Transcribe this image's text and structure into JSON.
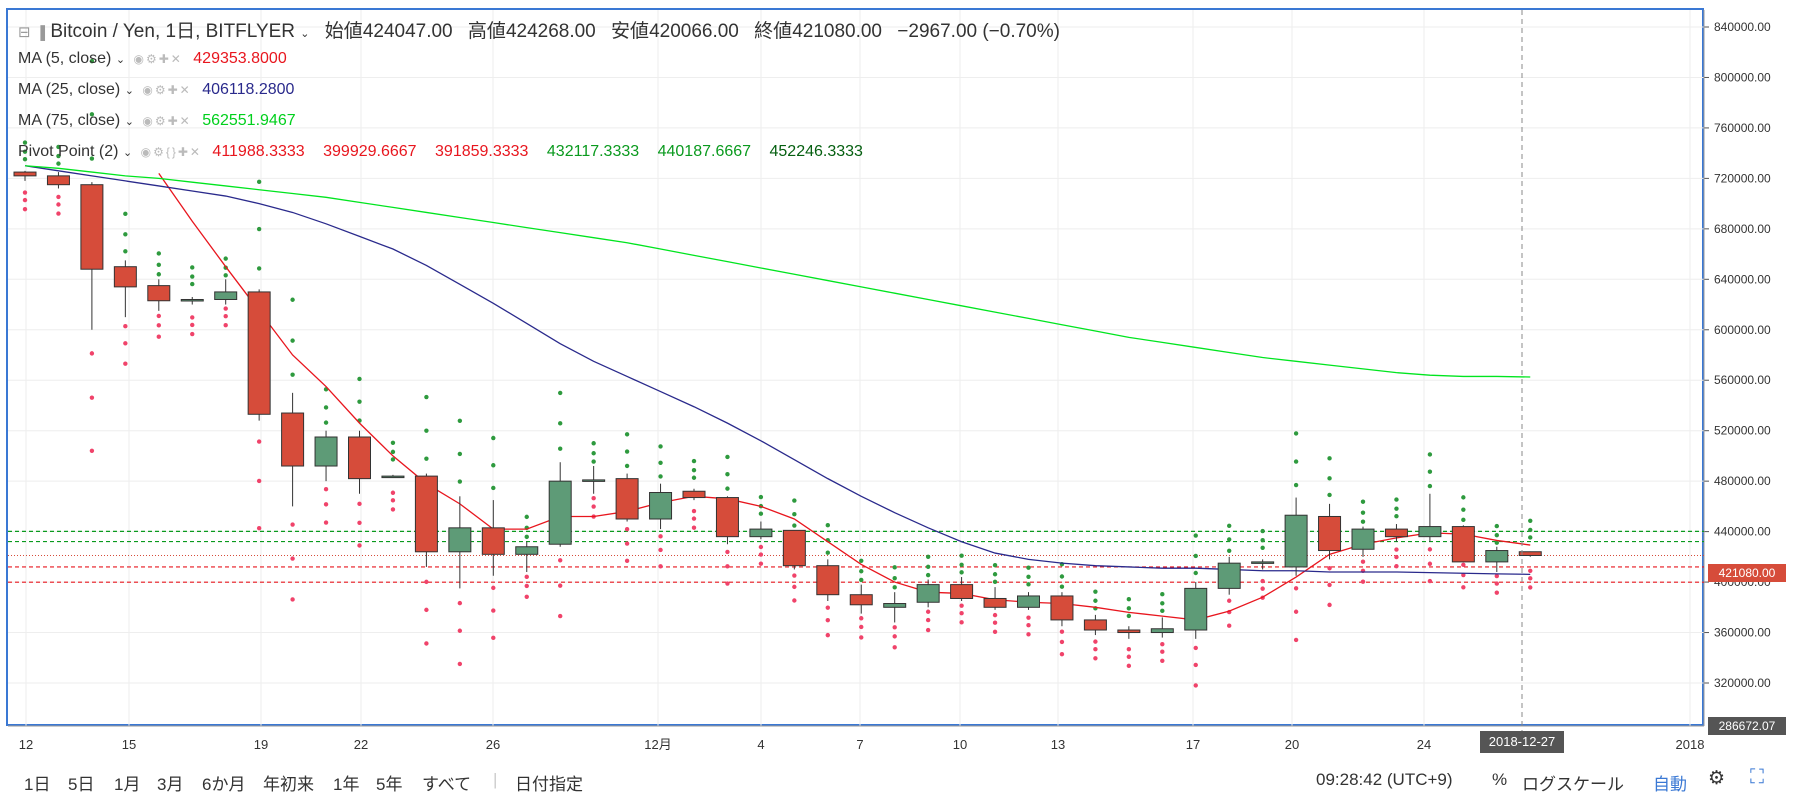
{
  "header": {
    "symbol_title": "Bitcoin / Yen, 1日, BITFLYER",
    "open_label": "始値",
    "open": "424047.00",
    "high_label": "高値",
    "high": "424268.00",
    "low_label": "安値",
    "low": "420066.00",
    "close_label": "終値",
    "close": "421080.00",
    "change": "−2967.00 (−0.70%)"
  },
  "legends": {
    "ma5": {
      "label": "MA (5, close)",
      "value": "429353.8000",
      "color": "#e8161e"
    },
    "ma25": {
      "label": "MA (25, close)",
      "value": "406118.2800",
      "color": "#2a2a8c"
    },
    "ma75": {
      "label": "MA (75, close)",
      "value": "562551.9467",
      "color": "#00e51f"
    },
    "pivot": {
      "label": "Pivot Point (2)",
      "values": [
        "411988.3333",
        "399929.6667",
        "391859.3333",
        "432117.3333",
        "440187.6667",
        "452246.3333"
      ],
      "colors": [
        "#e8161e",
        "#e8161e",
        "#e8161e",
        "#0a9a1e",
        "#0a9a1e",
        "#055f10"
      ]
    }
  },
  "price_axis": {
    "labels": [
      "840000.00",
      "800000.00",
      "760000.00",
      "720000.00",
      "680000.00",
      "640000.00",
      "600000.00",
      "560000.00",
      "520000.00",
      "480000.00",
      "440000.00",
      "400000.00",
      "360000.00",
      "320000.00"
    ],
    "last_price": "421080.00",
    "bottom_value": "286672.07"
  },
  "time_axis": {
    "labels": [
      "12",
      "15",
      "19",
      "22",
      "26",
      "12月",
      "4",
      "7",
      "10",
      "13",
      "17",
      "20",
      "24",
      "2018"
    ],
    "crosshair_date": "2018-12-27"
  },
  "bottombar": {
    "ranges": [
      "1日",
      "5日",
      "1月",
      "3月",
      "6か月",
      "年初来",
      "1年",
      "5年",
      "すべて"
    ],
    "date_jump": "日付指定",
    "clock": "09:28:42 (UTC+9)",
    "percent": "%",
    "log_scale": "ログスケール",
    "auto": "自動"
  },
  "colors": {
    "up": "#5e9b77",
    "down": "#d64c3a",
    "up_dot": "#2e9a3e",
    "down_dot": "#f0436a"
  },
  "chart_data": {
    "type": "candlestick",
    "symbol": "Bitcoin / Yen",
    "interval": "1日",
    "x": [
      "11-12",
      "11-13",
      "11-14",
      "11-15",
      "11-16",
      "11-17",
      "11-18",
      "11-19",
      "11-20",
      "11-21",
      "11-22",
      "11-23",
      "11-24",
      "11-25",
      "11-26",
      "11-27",
      "11-28",
      "11-29",
      "11-30",
      "12-01",
      "12-02",
      "12-03",
      "12-04",
      "12-05",
      "12-06",
      "12-07",
      "12-08",
      "12-09",
      "12-10",
      "12-11",
      "12-12",
      "12-13",
      "12-14",
      "12-15",
      "12-16",
      "12-17",
      "12-18",
      "12-19",
      "12-20",
      "12-21",
      "12-22",
      "12-23",
      "12-24",
      "12-25",
      "12-26",
      "12-27"
    ],
    "series": [
      {
        "name": "OHLC",
        "values": [
          [
            725000,
            726000,
            718000,
            722000
          ],
          [
            722000,
            725000,
            712000,
            715000
          ],
          [
            715000,
            717000,
            600000,
            648000
          ],
          [
            650000,
            655000,
            610000,
            634000
          ],
          [
            635000,
            640000,
            615000,
            623000
          ],
          [
            623000,
            626000,
            620000,
            624000
          ],
          [
            624000,
            640000,
            620000,
            630000
          ],
          [
            630000,
            632000,
            528000,
            533000
          ],
          [
            534000,
            550000,
            460000,
            492000
          ],
          [
            492000,
            520000,
            480000,
            515000
          ],
          [
            515000,
            520000,
            470000,
            482000
          ],
          [
            484000,
            485000,
            483000,
            484000
          ],
          [
            484000,
            486000,
            412000,
            424000
          ],
          [
            424000,
            468000,
            395000,
            443000
          ],
          [
            443000,
            465000,
            405000,
            422000
          ],
          [
            422000,
            432000,
            408000,
            428000
          ],
          [
            430000,
            495000,
            428000,
            480000
          ],
          [
            480000,
            492000,
            470000,
            481000
          ],
          [
            482000,
            486000,
            448000,
            450000
          ],
          [
            450000,
            478000,
            442000,
            471000
          ],
          [
            472000,
            474000,
            465000,
            467000
          ],
          [
            467000,
            468000,
            430000,
            436000
          ],
          [
            436000,
            448000,
            434000,
            442000
          ],
          [
            441000,
            440000,
            410000,
            413000
          ],
          [
            413000,
            418000,
            385000,
            390000
          ],
          [
            390000,
            398000,
            375000,
            382000
          ],
          [
            380000,
            392000,
            368000,
            383000
          ],
          [
            384000,
            402000,
            380000,
            398000
          ],
          [
            398000,
            404000,
            385000,
            387000
          ],
          [
            387000,
            396000,
            378000,
            380000
          ],
          [
            380000,
            392000,
            378000,
            389000
          ],
          [
            389000,
            392000,
            365000,
            370000
          ],
          [
            370000,
            374000,
            358000,
            362000
          ],
          [
            362000,
            365000,
            355000,
            360000
          ],
          [
            360000,
            372000,
            356000,
            363000
          ],
          [
            362000,
            400000,
            355000,
            395000
          ],
          [
            395000,
            420000,
            390000,
            415000
          ],
          [
            415000,
            418000,
            410000,
            416000
          ],
          [
            412000,
            467000,
            405000,
            453000
          ],
          [
            452000,
            462000,
            418000,
            425000
          ],
          [
            426000,
            444000,
            420000,
            442000
          ],
          [
            442000,
            446000,
            432000,
            436000
          ],
          [
            436000,
            470000,
            432000,
            444000
          ],
          [
            444000,
            445000,
            418000,
            416000
          ],
          [
            416000,
            428000,
            408000,
            425000
          ],
          [
            424047,
            424268,
            420066,
            421080
          ]
        ]
      },
      {
        "name": "MA (5, close)",
        "values": [
          null,
          null,
          null,
          null,
          724000,
          686000,
          650000,
          615000,
          580000,
          555000,
          526000,
          500000,
          478000,
          462000,
          442000,
          442000,
          452000,
          452000,
          456000,
          463000,
          468000,
          466000,
          460000,
          450000,
          432000,
          414000,
          400000,
          392000,
          391000,
          386000,
          384000,
          383000,
          380000,
          376000,
          373000,
          370000,
          377000,
          388000,
          404000,
          422000,
          430000,
          435000,
          439000,
          438000,
          433000,
          429354
        ]
      },
      {
        "name": "MA (25, close)",
        "values": [
          730000,
          726000,
          722000,
          718000,
          714000,
          710000,
          706000,
          700000,
          693000,
          684000,
          674000,
          664000,
          651000,
          636000,
          621000,
          605000,
          589000,
          575000,
          563000,
          551000,
          539000,
          526000,
          512000,
          497000,
          482000,
          468000,
          455000,
          443000,
          432000,
          423000,
          418000,
          415000,
          413000,
          412000,
          411000,
          411000,
          410000,
          409000,
          409000,
          408000,
          408000,
          408000,
          407500,
          407000,
          406500,
          406118
        ]
      },
      {
        "name": "MA (75, close)",
        "values": [
          730000,
          728000,
          725000,
          722000,
          720000,
          717000,
          714000,
          711000,
          708000,
          705000,
          701000,
          697000,
          693000,
          689000,
          685000,
          681000,
          677000,
          673000,
          669000,
          664000,
          659000,
          654000,
          649000,
          644000,
          639000,
          634000,
          629000,
          624000,
          619000,
          614000,
          609000,
          604000,
          599000,
          594000,
          590000,
          586000,
          582000,
          578000,
          575000,
          572000,
          569000,
          566000,
          564000,
          563000,
          563000,
          562552
        ]
      }
    ],
    "pivot_levels": {
      "P": 411988.3333,
      "S1": 399929.6667,
      "S2": 391859.3333,
      "R1": 432117.3333,
      "R2": 440187.6667,
      "R3": 452246.3333
    },
    "ylim": [
      286672.07,
      860000
    ],
    "y_ticks": [
      840000,
      800000,
      760000,
      720000,
      680000,
      640000,
      600000,
      560000,
      520000,
      480000,
      440000,
      400000,
      360000,
      320000
    ],
    "grid": true
  }
}
